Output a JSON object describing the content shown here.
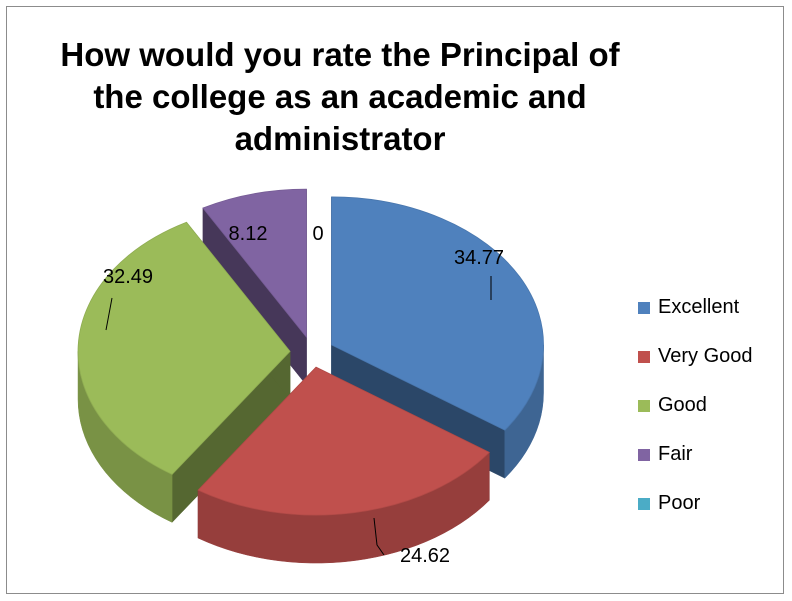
{
  "chart_data": {
    "type": "pie",
    "three_d": true,
    "title": "How would you rate the Principal of the college as an academic and administrator",
    "categories": [
      "Excellent",
      "Very Good",
      "Good",
      "Fair",
      "Poor"
    ],
    "values": [
      34.77,
      24.62,
      32.49,
      8.12,
      0
    ],
    "data_labels": [
      "34.77",
      "24.62",
      "32.49",
      "8.12",
      "0"
    ],
    "colors": [
      "#4f81bd",
      "#c0504d",
      "#9bbb59",
      "#8064a2",
      "#4bacc6"
    ],
    "legend_position": "right",
    "exploded": true
  }
}
